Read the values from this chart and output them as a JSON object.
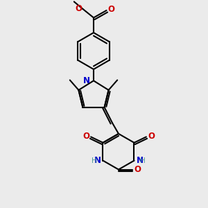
{
  "bg_color": "#ebebeb",
  "bond_color": "#000000",
  "n_color": "#0000cc",
  "o_color": "#cc0000",
  "h_color": "#4d9999",
  "line_width": 1.5,
  "font_size": 8.5,
  "fig_width": 3.0,
  "fig_height": 3.0,
  "dpi": 100,
  "xlim": [
    0,
    10
  ],
  "ylim": [
    0,
    10
  ]
}
